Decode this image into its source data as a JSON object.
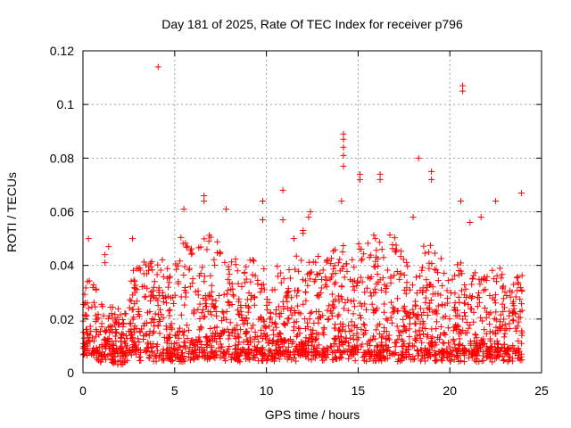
{
  "chart_data": {
    "type": "scatter",
    "title": "Day 181 of 2025, Rate Of TEC Index for receiver p796",
    "xlabel": "GPS time / hours",
    "ylabel": "ROTI / TECUs",
    "xlim": [
      0,
      25
    ],
    "ylim": [
      0,
      0.12
    ],
    "x_ticks": [
      0,
      5,
      10,
      15,
      20,
      25
    ],
    "y_ticks": [
      0,
      0.02,
      0.04,
      0.06,
      0.08,
      0.1,
      0.12
    ],
    "x_tick_labels": [
      "0",
      "5",
      "10",
      "15",
      "20",
      "25"
    ],
    "y_tick_labels": [
      "0",
      "0.02",
      "0.04",
      "0.06",
      "0.08",
      "0.1",
      "0.12"
    ],
    "grid": true,
    "marker": "plus",
    "marker_color": "#ff0000",
    "x_data_range": [
      0,
      23.95
    ],
    "notable_points": [
      {
        "x": 4.1,
        "y": 0.114
      },
      {
        "x": 20.7,
        "y": 0.107
      },
      {
        "x": 20.7,
        "y": 0.105
      },
      {
        "x": 14.2,
        "y": 0.089
      },
      {
        "x": 14.2,
        "y": 0.087
      },
      {
        "x": 14.2,
        "y": 0.084
      },
      {
        "x": 14.2,
        "y": 0.081
      },
      {
        "x": 14.2,
        "y": 0.077
      },
      {
        "x": 18.3,
        "y": 0.08
      },
      {
        "x": 19.0,
        "y": 0.075
      },
      {
        "x": 19.0,
        "y": 0.072
      },
      {
        "x": 15.1,
        "y": 0.074
      },
      {
        "x": 15.1,
        "y": 0.072
      },
      {
        "x": 16.2,
        "y": 0.074
      },
      {
        "x": 16.2,
        "y": 0.072
      },
      {
        "x": 10.9,
        "y": 0.068
      },
      {
        "x": 23.9,
        "y": 0.067
      },
      {
        "x": 6.6,
        "y": 0.066
      },
      {
        "x": 6.6,
        "y": 0.064
      },
      {
        "x": 9.8,
        "y": 0.064
      },
      {
        "x": 20.6,
        "y": 0.064
      },
      {
        "x": 22.5,
        "y": 0.064
      },
      {
        "x": 14.1,
        "y": 0.064
      },
      {
        "x": 5.5,
        "y": 0.061
      },
      {
        "x": 7.8,
        "y": 0.061
      },
      {
        "x": 12.4,
        "y": 0.06
      },
      {
        "x": 12.3,
        "y": 0.058
      },
      {
        "x": 9.8,
        "y": 0.057
      },
      {
        "x": 10.9,
        "y": 0.057
      },
      {
        "x": 18.0,
        "y": 0.058
      },
      {
        "x": 21.7,
        "y": 0.058
      },
      {
        "x": 21.1,
        "y": 0.056
      },
      {
        "x": 12.0,
        "y": 0.053
      },
      {
        "x": 12.0,
        "y": 0.052
      },
      {
        "x": 2.7,
        "y": 0.05
      },
      {
        "x": 0.3,
        "y": 0.05
      },
      {
        "x": 11.5,
        "y": 0.05
      },
      {
        "x": 1.4,
        "y": 0.047
      },
      {
        "x": 1.2,
        "y": 0.044
      },
      {
        "x": 1.2,
        "y": 0.041
      }
    ],
    "dense_bands": [
      {
        "x_start": 0.0,
        "x_end": 0.8,
        "y_floor": 0.005,
        "y_peak": 0.034
      },
      {
        "x_start": 0.8,
        "x_end": 2.5,
        "y_floor": 0.003,
        "y_peak": 0.022
      },
      {
        "x_start": 2.5,
        "x_end": 4.0,
        "y_floor": 0.004,
        "y_peak": 0.04
      },
      {
        "x_start": 4.0,
        "x_end": 5.2,
        "y_floor": 0.004,
        "y_peak": 0.04
      },
      {
        "x_start": 5.2,
        "x_end": 7.5,
        "y_floor": 0.004,
        "y_peak": 0.05
      },
      {
        "x_start": 7.5,
        "x_end": 9.5,
        "y_floor": 0.004,
        "y_peak": 0.04
      },
      {
        "x_start": 9.5,
        "x_end": 11.5,
        "y_floor": 0.004,
        "y_peak": 0.036
      },
      {
        "x_start": 11.5,
        "x_end": 13.5,
        "y_floor": 0.004,
        "y_peak": 0.04
      },
      {
        "x_start": 13.5,
        "x_end": 15.5,
        "y_floor": 0.004,
        "y_peak": 0.045
      },
      {
        "x_start": 15.5,
        "x_end": 17.5,
        "y_floor": 0.004,
        "y_peak": 0.05
      },
      {
        "x_start": 17.5,
        "x_end": 19.5,
        "y_floor": 0.004,
        "y_peak": 0.045
      },
      {
        "x_start": 19.5,
        "x_end": 21.5,
        "y_floor": 0.004,
        "y_peak": 0.04
      },
      {
        "x_start": 21.5,
        "x_end": 23.95,
        "y_floor": 0.004,
        "y_peak": 0.036
      }
    ]
  }
}
